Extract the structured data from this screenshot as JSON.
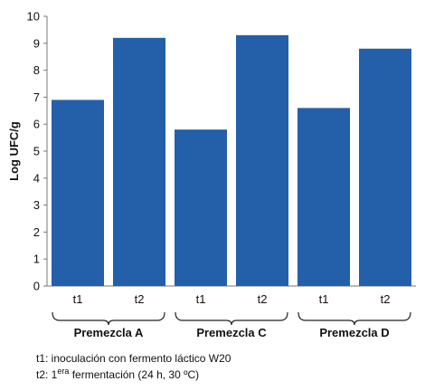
{
  "chart_data": {
    "type": "bar",
    "ylabel": "Log UFC/g",
    "ylim": [
      0,
      10
    ],
    "yticks": [
      "0",
      "1",
      "2",
      "3",
      "4",
      "5",
      "6",
      "7",
      "8",
      "9",
      "10"
    ],
    "bar_color": "#2360A9",
    "groups": [
      {
        "name": "Premezcla A",
        "categories": [
          "t1",
          "t2"
        ],
        "values": [
          6.9,
          9.2
        ]
      },
      {
        "name": "Premezcla C",
        "categories": [
          "t1",
          "t2"
        ],
        "values": [
          5.8,
          9.3
        ]
      },
      {
        "name": "Premezcla D",
        "categories": [
          "t1",
          "t2"
        ],
        "values": [
          6.6,
          8.8
        ]
      }
    ],
    "grid": false
  },
  "notes": {
    "line1": "t1: inoculación con fermento láctico W20",
    "line2_prefix": "t2:  1",
    "line2_sup": "era",
    "line2_suffix": " fermentación (24 h, 30 ºC)"
  }
}
